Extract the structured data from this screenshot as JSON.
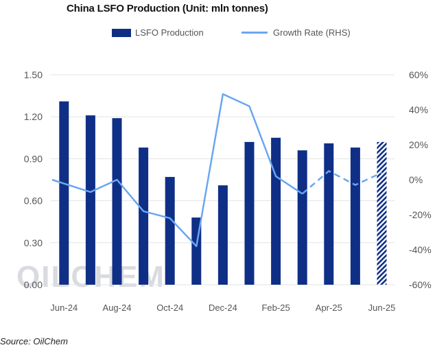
{
  "chart_data": {
    "type": "bar+line",
    "title": "China LSFO Production (Unit: mln tonnes)",
    "categories": [
      "Jun-24",
      "Jul-24",
      "Aug-24",
      "Sep-24",
      "Oct-24",
      "Nov-24",
      "Dec-24",
      "Jan-25",
      "Feb-25",
      "Mar-25",
      "Apr-25",
      "May-25",
      "Jun-25"
    ],
    "x_tick_labels": [
      "Jun-24",
      "Aug-24",
      "Oct-24",
      "Dec-24",
      "Feb-25",
      "Apr-25",
      "Jun-25"
    ],
    "series": [
      {
        "name": "LSFO Production",
        "kind": "bar",
        "axis": "left",
        "values": [
          1.31,
          1.21,
          1.19,
          0.98,
          0.77,
          0.48,
          0.71,
          1.02,
          1.05,
          0.96,
          1.01,
          0.98,
          1.02
        ],
        "forecast_from_index": 12,
        "color": "#0f2f86"
      },
      {
        "name": "Growth Rate (RHS)",
        "kind": "line",
        "axis": "right",
        "x_start_offset": -0.5,
        "values": [
          0,
          -7,
          0,
          -18,
          -22,
          -38,
          49,
          42,
          2,
          -8,
          5,
          -3,
          4
        ],
        "dashed_from_index": 9,
        "color": "#6aa6f2"
      }
    ],
    "left_axis": {
      "min": 0,
      "max": 1.5,
      "ticks": [
        "0.00",
        "0.30",
        "0.60",
        "0.90",
        "1.20",
        "1.50"
      ]
    },
    "right_axis": {
      "min": -60,
      "max": 60,
      "ticks": [
        "-60%",
        "-40%",
        "-20%",
        "0%",
        "20%",
        "40%",
        "60%"
      ]
    },
    "watermark": "OILCHEM",
    "source": "Source: OilChem"
  }
}
